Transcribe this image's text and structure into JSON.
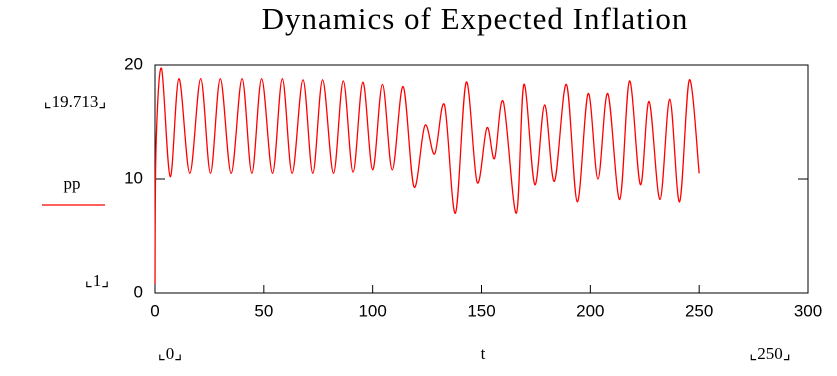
{
  "chart_data": {
    "type": "line",
    "title": "Dynamics of Expected Inflation",
    "x_label": "t",
    "x": [
      0,
      0.5,
      3,
      7,
      11,
      16,
      21,
      25.5,
      30,
      35,
      40,
      44.5,
      49,
      54,
      58.5,
      63,
      68,
      72.5,
      77,
      82,
      86.5,
      91,
      95.5,
      100,
      104.5,
      109,
      114,
      119,
      124,
      128.5,
      133,
      138,
      143,
      148,
      152.5,
      156,
      160,
      166,
      169.5,
      174.5,
      179,
      183.5,
      189,
      194,
      199,
      203.5,
      208,
      213.5,
      218,
      223,
      227,
      232,
      236.5,
      241,
      245.5,
      250
    ],
    "series": [
      {
        "name": "pp",
        "color": "#ff0000",
        "values": [
          0.8,
          13,
          19.7,
          10.2,
          18.8,
          10.5,
          18.8,
          10.5,
          18.8,
          10.5,
          18.8,
          10.5,
          18.8,
          10.5,
          18.8,
          10.5,
          18.7,
          10.5,
          18.7,
          10.5,
          18.6,
          10.6,
          18.5,
          10.8,
          18.3,
          10.8,
          18.1,
          9.3,
          14.7,
          12.2,
          16.5,
          7,
          18.5,
          9.7,
          14.5,
          11.8,
          16.8,
          7,
          18.3,
          9.5,
          16.5,
          9.8,
          18.3,
          8,
          17.5,
          10,
          17.5,
          8.2,
          18.6,
          9.5,
          16.8,
          8.2,
          17,
          8,
          18.7,
          10.5
        ]
      }
    ],
    "xlim": [
      0,
      300
    ],
    "xticks": [
      0,
      50,
      100,
      150,
      200,
      250,
      300
    ],
    "ylim": [
      0,
      20
    ],
    "yticks": [
      0,
      10,
      20
    ],
    "annotations": [
      "⌞19.713⌟",
      "⌞1⌟",
      "⌞0⌟",
      "⌞250⌟"
    ]
  }
}
